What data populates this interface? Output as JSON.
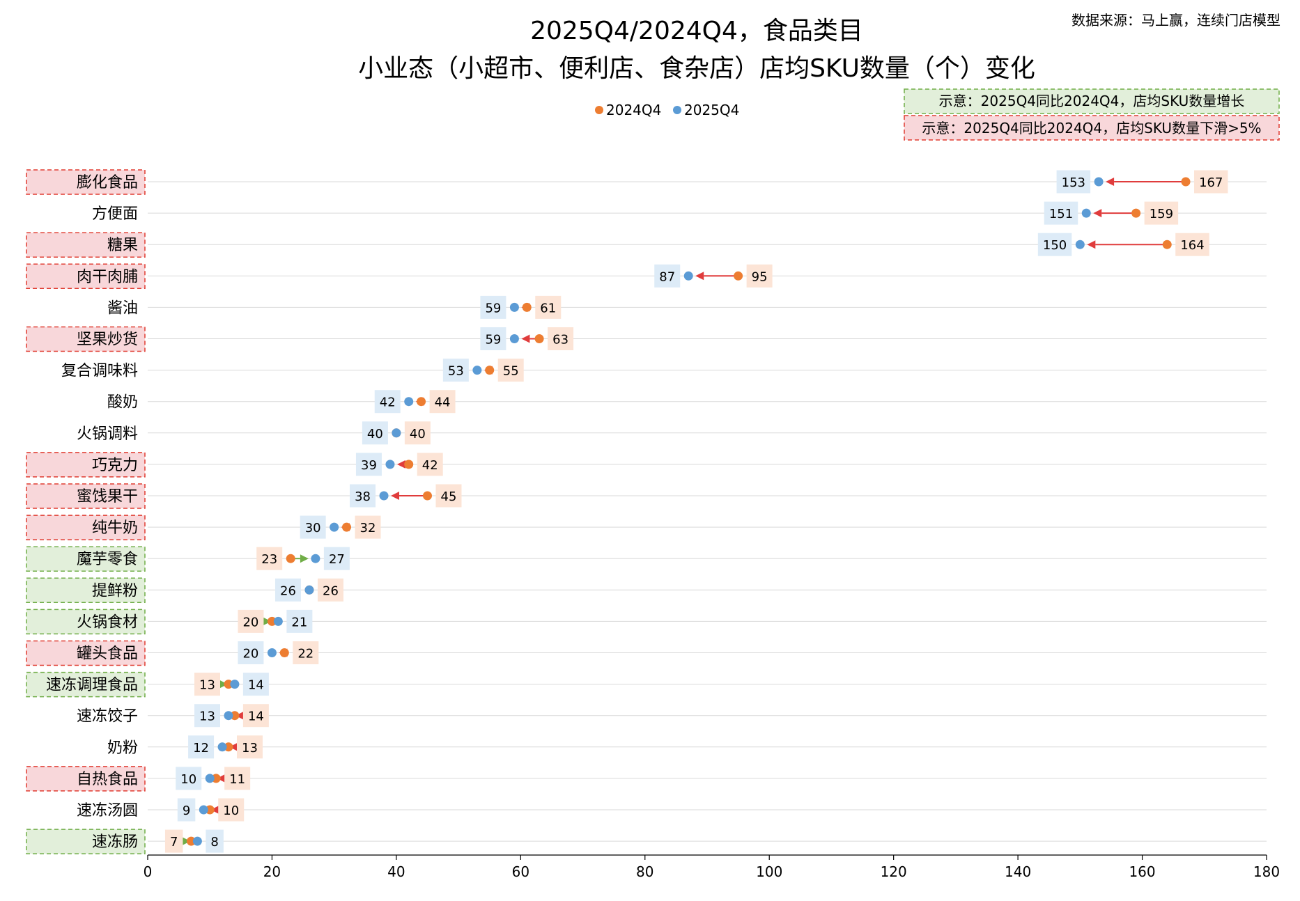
{
  "header": {
    "title_line1": "2025Q4/2024Q4，食品类目",
    "title_line2": "小业态（小超市、便利店、食杂店）店均SKU数量（个）变化",
    "source": "数据来源：马上赢，连续门店模型"
  },
  "legend": [
    {
      "label": "2024Q4",
      "color": "#ED7D31"
    },
    {
      "label": "2025Q4",
      "color": "#5B9BD5"
    }
  ],
  "notes": {
    "increase": {
      "text": "示意：2025Q4同比2024Q4，店均SKU数量增长",
      "fill": "#E2EFDA",
      "border": "#70AD47"
    },
    "decrease": {
      "text": "示意：2025Q4同比2024Q4，店均SKU数量下滑>5%",
      "fill": "#F8D7DA",
      "border": "#E03C31"
    }
  },
  "colors": {
    "s2024_dot": "#ED7D31",
    "s2025_dot": "#5B9BD5",
    "s2024_box": "#FCE4D6",
    "s2025_box": "#DDEBF7",
    "arrow_down": "#E03C3C",
    "arrow_up": "#70AD47",
    "grid": "#D9D9D9"
  },
  "chart_data": {
    "type": "dumbbell",
    "xlim": [
      0,
      180
    ],
    "xticks": [
      0,
      20,
      40,
      60,
      80,
      100,
      120,
      140,
      160,
      180
    ],
    "series": [
      {
        "name": "2024Q4",
        "key": "v2024"
      },
      {
        "name": "2025Q4",
        "key": "v2025"
      }
    ],
    "categories": [
      {
        "name": "膨化食品",
        "v2024": 167,
        "v2025": 153,
        "status": "decrease"
      },
      {
        "name": "方便面",
        "v2024": 159,
        "v2025": 151,
        "status": "none"
      },
      {
        "name": "糖果",
        "v2024": 164,
        "v2025": 150,
        "status": "decrease"
      },
      {
        "name": "肉干肉脯",
        "v2024": 95,
        "v2025": 87,
        "status": "decrease"
      },
      {
        "name": "酱油",
        "v2024": 61,
        "v2025": 59,
        "status": "none"
      },
      {
        "name": "坚果炒货",
        "v2024": 63,
        "v2025": 59,
        "status": "decrease"
      },
      {
        "name": "复合调味料",
        "v2024": 55,
        "v2025": 53,
        "status": "none"
      },
      {
        "name": "酸奶",
        "v2024": 44,
        "v2025": 42,
        "status": "none"
      },
      {
        "name": "火锅调料",
        "v2024": 40,
        "v2025": 40,
        "status": "none"
      },
      {
        "name": "巧克力",
        "v2024": 42,
        "v2025": 39,
        "status": "decrease"
      },
      {
        "name": "蜜饯果干",
        "v2024": 45,
        "v2025": 38,
        "status": "decrease"
      },
      {
        "name": "纯牛奶",
        "v2024": 32,
        "v2025": 30,
        "status": "decrease"
      },
      {
        "name": "魔芋零食",
        "v2024": 23,
        "v2025": 27,
        "status": "increase"
      },
      {
        "name": "提鲜粉",
        "v2024": 26,
        "v2025": 26,
        "status": "increase"
      },
      {
        "name": "火锅食材",
        "v2024": 20,
        "v2025": 21,
        "status": "increase"
      },
      {
        "name": "罐头食品",
        "v2024": 22,
        "v2025": 20,
        "status": "decrease"
      },
      {
        "name": "速冻调理食品",
        "v2024": 13,
        "v2025": 14,
        "status": "increase"
      },
      {
        "name": "速冻饺子",
        "v2024": 14,
        "v2025": 13,
        "status": "none"
      },
      {
        "name": "奶粉",
        "v2024": 13,
        "v2025": 12,
        "status": "none"
      },
      {
        "name": "自热食品",
        "v2024": 11,
        "v2025": 10,
        "status": "decrease"
      },
      {
        "name": "速冻汤圆",
        "v2024": 10,
        "v2025": 9,
        "status": "none"
      },
      {
        "name": "速冻肠",
        "v2024": 7,
        "v2025": 8,
        "status": "increase"
      }
    ]
  }
}
